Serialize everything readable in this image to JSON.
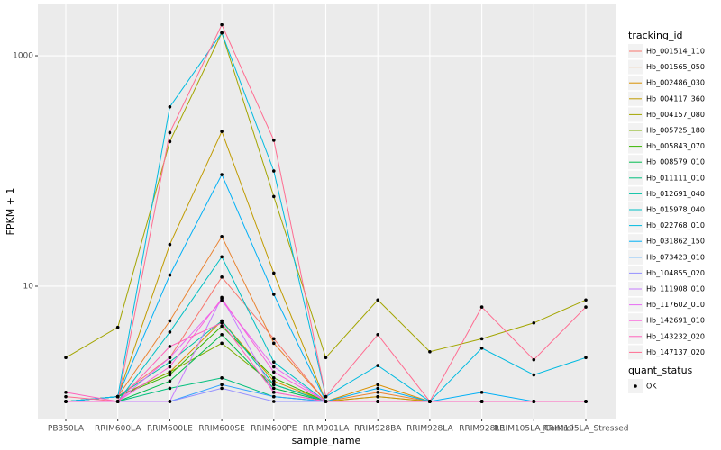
{
  "chart_data": {
    "type": "line",
    "x_label": "sample_name",
    "y_label": "FPKM + 1",
    "categories": [
      "PB350LA",
      "RRIM600LA",
      "RRIM600LE",
      "RRIM600SE",
      "RRIM600PE",
      "RRIM901LA",
      "RRIM928BA",
      "RRIM928LA",
      "RRIM928LE",
      "RRIM105LA_Control",
      "RRIM105LA_Stressed"
    ],
    "ylim": [
      0.71,
      2790
    ],
    "yticks": [
      10,
      1000
    ],
    "log_y": true,
    "grid": true,
    "legend_title": "tracking_id",
    "legend_position": "right",
    "point_legend_title": "quant_status",
    "point_legend_label": "OK",
    "point_color": "#000000",
    "series": [
      {
        "name": "Hb_001514_110",
        "color": "#F8766D",
        "values": [
          1,
          1.1,
          2.4,
          12,
          3.5,
          1,
          1.1,
          1,
          1,
          1,
          1
        ]
      },
      {
        "name": "Hb_001565_050",
        "color": "#EA8331",
        "values": [
          1,
          1.1,
          5,
          27,
          3.2,
          1,
          1.2,
          1,
          1,
          1,
          1
        ]
      },
      {
        "name": "Hb_002486_030",
        "color": "#D89000",
        "values": [
          1,
          1.1,
          1.8,
          5,
          1.5,
          1,
          1.4,
          1,
          1,
          1,
          1
        ]
      },
      {
        "name": "Hb_004117_360",
        "color": "#C09B00",
        "values": [
          1,
          1.1,
          23,
          220,
          13,
          1,
          1.1,
          1,
          1,
          1,
          1
        ]
      },
      {
        "name": "Hb_004157_080",
        "color": "#A3A500",
        "values": [
          2.4,
          4.4,
          180,
          1580,
          60,
          2.4,
          7.6,
          2.7,
          3.5,
          4.8,
          7.6
        ]
      },
      {
        "name": "Hb_005725_180",
        "color": "#7CAE00",
        "values": [
          1,
          1.1,
          1.8,
          3.2,
          1.4,
          1,
          1,
          1,
          1,
          1,
          1
        ]
      },
      {
        "name": "Hb_005843_070",
        "color": "#39B600",
        "values": [
          1,
          1.1,
          1.7,
          4.5,
          1.6,
          1,
          1,
          1,
          1,
          1,
          1
        ]
      },
      {
        "name": "Hb_008579_010",
        "color": "#00BB4E",
        "values": [
          1,
          1,
          1.5,
          3.8,
          1.3,
          1,
          1,
          1,
          1,
          1,
          1
        ]
      },
      {
        "name": "Hb_011111_010",
        "color": "#00BF7D",
        "values": [
          1,
          1,
          1.3,
          1.6,
          1.1,
          1,
          1,
          1,
          1,
          1,
          1
        ]
      },
      {
        "name": "Hb_012691_040",
        "color": "#00C1A3",
        "values": [
          1,
          1.1,
          2.2,
          5,
          1.4,
          1,
          1,
          1,
          1,
          1,
          1
        ]
      },
      {
        "name": "Hb_015978_040",
        "color": "#00BFC4",
        "values": [
          1,
          1,
          4,
          18,
          2.2,
          1,
          1,
          1,
          1,
          1,
          1
        ]
      },
      {
        "name": "Hb_022768_010",
        "color": "#00BAE0",
        "values": [
          1,
          1.1,
          360,
          1580,
          100,
          1.1,
          2.05,
          1,
          2.9,
          1.7,
          2.4
        ]
      },
      {
        "name": "Hb_031862_150",
        "color": "#00B0F6",
        "values": [
          1,
          1.1,
          12.5,
          93,
          8.5,
          1,
          1.3,
          1,
          1.2,
          1,
          1
        ]
      },
      {
        "name": "Hb_073423_010",
        "color": "#35A2FF",
        "values": [
          1,
          1,
          1,
          1.4,
          1.1,
          1,
          1,
          1,
          1,
          1,
          1
        ]
      },
      {
        "name": "Hb_104855_020",
        "color": "#9590FF",
        "values": [
          1,
          1,
          1,
          1.3,
          1,
          1,
          1,
          1,
          1,
          1,
          1
        ]
      },
      {
        "name": "Hb_111908_010",
        "color": "#C77CFF",
        "values": [
          1,
          1,
          1,
          8,
          1.2,
          1,
          1,
          1,
          1,
          1,
          1
        ]
      },
      {
        "name": "Hb_117602_010",
        "color": "#E76BF3",
        "values": [
          1,
          1,
          2.4,
          7.5,
          2,
          1,
          1,
          1,
          1,
          1,
          1
        ]
      },
      {
        "name": "Hb_142691_010",
        "color": "#FA62DB",
        "values": [
          1,
          1,
          2,
          7.8,
          1.8,
          1,
          1,
          1,
          1,
          1,
          1
        ]
      },
      {
        "name": "Hb_143232_020",
        "color": "#FF62BC",
        "values": [
          1.2,
          1,
          3,
          4.8,
          1.2,
          1,
          1,
          1,
          1,
          1,
          1
        ]
      },
      {
        "name": "Hb_147137_020",
        "color": "#FF6C91",
        "values": [
          1.1,
          1,
          215,
          1860,
          185,
          1.1,
          3.8,
          1,
          6.6,
          2.3,
          6.6
        ]
      }
    ]
  }
}
